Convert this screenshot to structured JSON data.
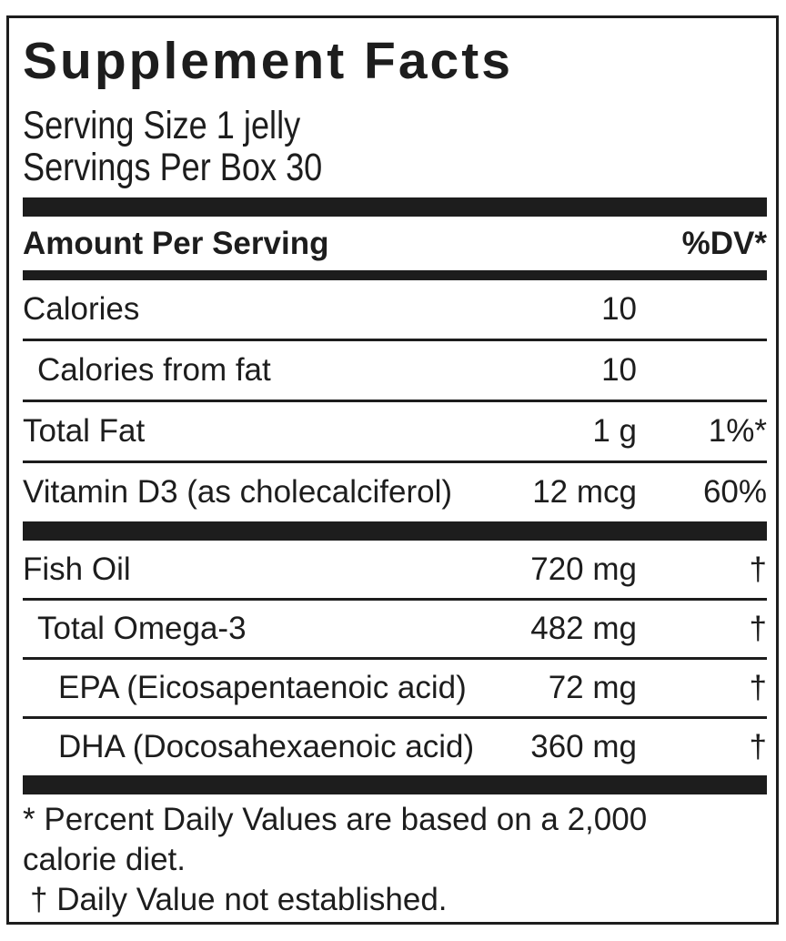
{
  "panel": {
    "title": "Supplement Facts",
    "serving_size": "Serving Size 1 jelly",
    "servings_per_box": "Servings Per Box 30",
    "column_header": {
      "left": "Amount Per Serving",
      "right": "%DV*"
    },
    "rows": [
      {
        "name": "Calories",
        "amount": "10",
        "dv": "",
        "indent": 0
      },
      {
        "name": "Calories from fat",
        "amount": "10",
        "dv": "",
        "indent": 1
      },
      {
        "name": "Total Fat",
        "amount": "1 g",
        "dv": "1%*",
        "indent": 0
      },
      {
        "name": "Vitamin D3 (as cholecalciferol)",
        "amount": "12 mcg",
        "dv": "60%",
        "indent": 0
      },
      {
        "name": "Fish Oil",
        "amount": "720 mg",
        "dv": "†",
        "indent": 0
      },
      {
        "name": "Total Omega-3",
        "amount": "482 mg",
        "dv": "†",
        "indent": 1
      },
      {
        "name": "EPA (Eicosapentaenoic acid)",
        "amount": "72 mg",
        "dv": "†",
        "indent": 2
      },
      {
        "name": "DHA (Docosahexaenoic acid)",
        "amount": "360 mg",
        "dv": "†",
        "indent": 2
      }
    ],
    "footnotes": [
      "* Percent Daily Values are based on a 2,000",
      "calorie diet.",
      "† Daily Value not established."
    ],
    "colors": {
      "ink": "#1d1d1d",
      "background": "#ffffff"
    }
  }
}
